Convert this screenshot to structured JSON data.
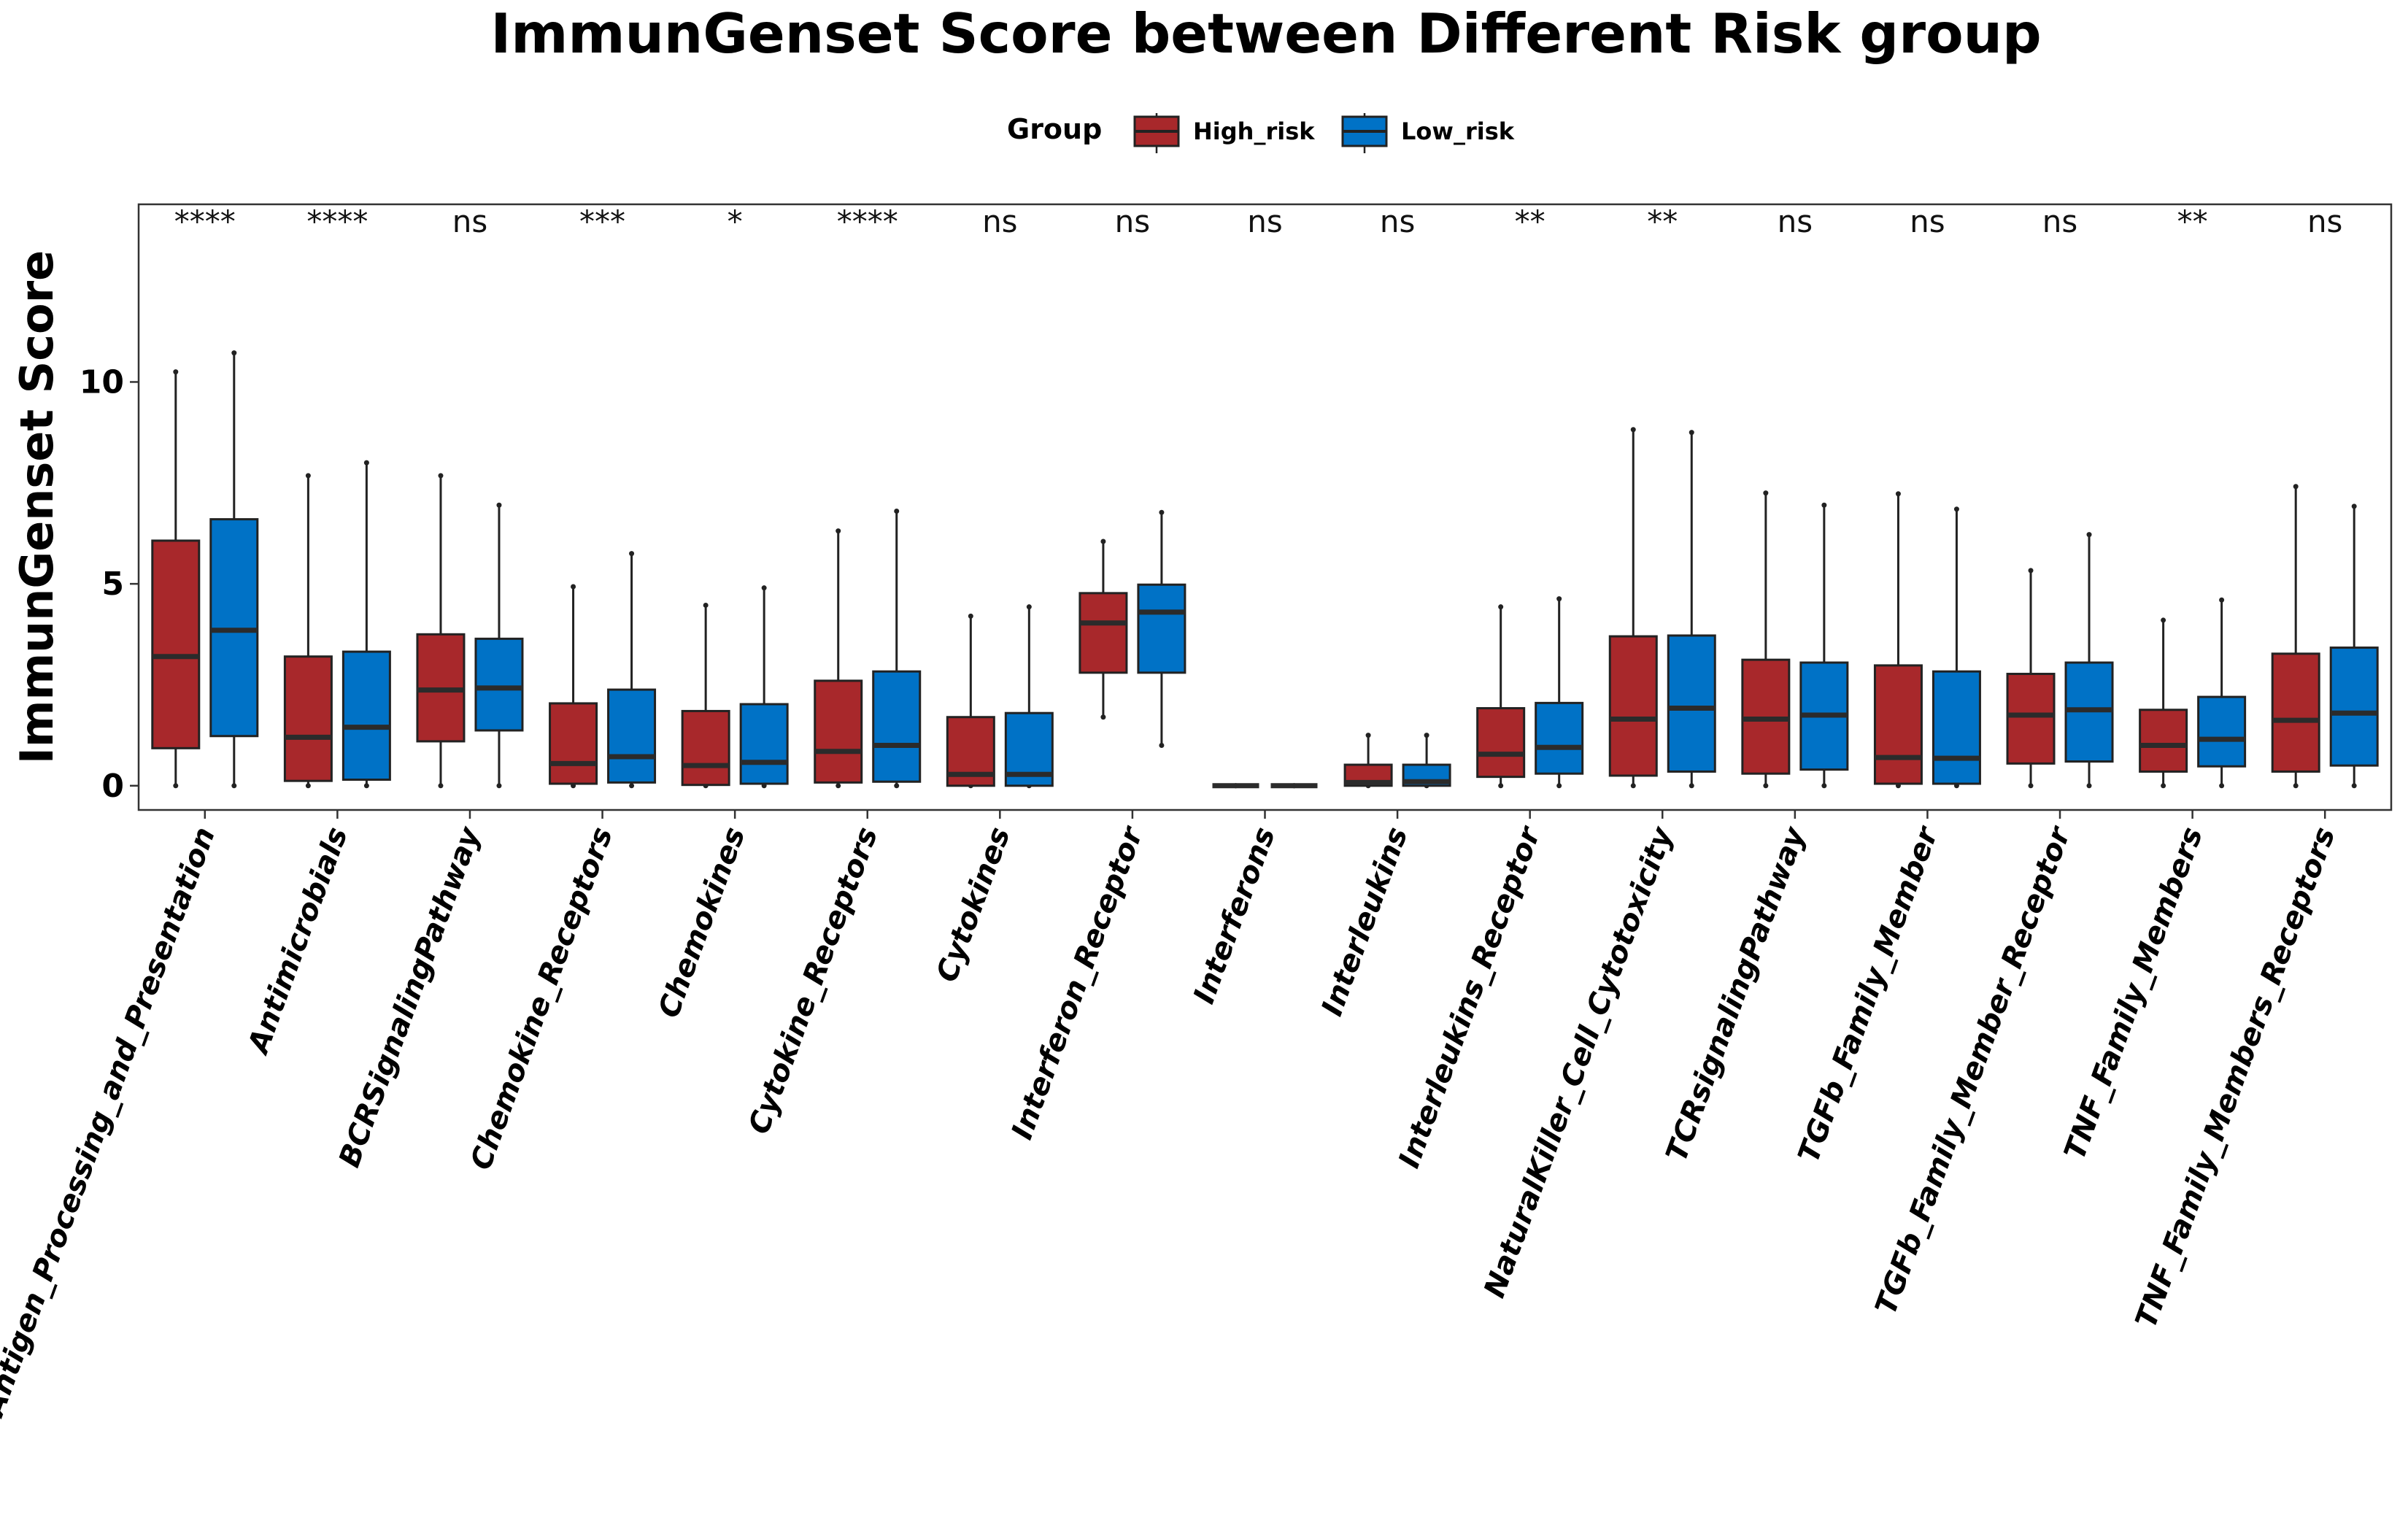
{
  "chart_data": {
    "type": "box",
    "title": "ImmunGenset Score between Different Risk group",
    "xlabel": "",
    "ylabel": "ImmunGenset Score",
    "ylim": [
      -0.6,
      14.4
    ],
    "yticks": [
      0,
      5,
      10
    ],
    "grid": false,
    "legend": {
      "title": "Group",
      "position": "top",
      "entries": [
        {
          "name": "High_risk",
          "color": "#A8282B"
        },
        {
          "name": "Low_risk",
          "color": "#0072C6"
        }
      ]
    },
    "categories": [
      "Antigen_Processing_and_Presentation",
      "Antimicrobials",
      "BCRSignalingPathway",
      "Chemokine_Receptors",
      "Chemokines",
      "Cytokine_Receptors",
      "Cytokines",
      "Interferon_Receptor",
      "Interferons",
      "Interleukins",
      "Interleukins_Receptor",
      "NaturalKiller_Cell_Cytotoxicity",
      "TCRsignalingPathway",
      "TGFb_Family_Member",
      "TGFb_Family_Member_Receptor",
      "TNF_Family_Members",
      "TNF_Family_Members_Receptors"
    ],
    "significance": [
      "****",
      "****",
      "ns",
      "***",
      "*",
      "****",
      "ns",
      "ns",
      "ns",
      "ns",
      "**",
      "**",
      "ns",
      "ns",
      "ns",
      "**",
      "ns"
    ],
    "series": [
      {
        "name": "High_risk",
        "color": "#A8282B",
        "boxes": [
          {
            "min": 0,
            "q1": 0.93,
            "median": 3.2,
            "q3": 6.07,
            "max": 10.25
          },
          {
            "min": 0,
            "q1": 0.12,
            "median": 1.2,
            "q3": 3.2,
            "max": 7.68
          },
          {
            "min": 0,
            "q1": 1.1,
            "median": 2.37,
            "q3": 3.75,
            "max": 7.68
          },
          {
            "min": 0,
            "q1": 0.05,
            "median": 0.55,
            "q3": 2.04,
            "max": 4.93
          },
          {
            "min": 0,
            "q1": 0.02,
            "median": 0.5,
            "q3": 1.85,
            "max": 4.47
          },
          {
            "min": 0,
            "q1": 0.08,
            "median": 0.85,
            "q3": 2.6,
            "max": 6.31
          },
          {
            "min": 0,
            "q1": 0.0,
            "median": 0.28,
            "q3": 1.7,
            "max": 4.2
          },
          {
            "min": 1.7,
            "q1": 2.8,
            "median": 4.03,
            "q3": 4.77,
            "max": 6.05
          },
          {
            "min": 0,
            "q1": 0,
            "median": 0,
            "q3": 0,
            "max": 0
          },
          {
            "min": 0,
            "q1": 0.0,
            "median": 0.08,
            "q3": 0.52,
            "max": 1.25
          },
          {
            "min": 0,
            "q1": 0.22,
            "median": 0.78,
            "q3": 1.92,
            "max": 4.43
          },
          {
            "min": 0,
            "q1": 0.25,
            "median": 1.65,
            "q3": 3.7,
            "max": 8.82
          },
          {
            "min": 0,
            "q1": 0.3,
            "median": 1.65,
            "q3": 3.12,
            "max": 7.25
          },
          {
            "min": 0,
            "q1": 0.05,
            "median": 0.7,
            "q3": 2.98,
            "max": 7.23
          },
          {
            "min": 0,
            "q1": 0.55,
            "median": 1.75,
            "q3": 2.77,
            "max": 5.33
          },
          {
            "min": 0,
            "q1": 0.35,
            "median": 1.0,
            "q3": 1.88,
            "max": 4.1
          },
          {
            "min": 0,
            "q1": 0.35,
            "median": 1.62,
            "q3": 3.27,
            "max": 7.41
          }
        ]
      },
      {
        "name": "Low_risk",
        "color": "#0072C6",
        "boxes": [
          {
            "min": 0,
            "q1": 1.23,
            "median": 3.85,
            "q3": 6.6,
            "max": 10.72
          },
          {
            "min": 0,
            "q1": 0.15,
            "median": 1.45,
            "q3": 3.32,
            "max": 8.0
          },
          {
            "min": 0,
            "q1": 1.37,
            "median": 2.42,
            "q3": 3.64,
            "max": 6.95
          },
          {
            "min": 0,
            "q1": 0.08,
            "median": 0.72,
            "q3": 2.38,
            "max": 5.75
          },
          {
            "min": 0,
            "q1": 0.05,
            "median": 0.58,
            "q3": 2.02,
            "max": 4.9
          },
          {
            "min": 0,
            "q1": 0.1,
            "median": 1.0,
            "q3": 2.83,
            "max": 6.8
          },
          {
            "min": 0,
            "q1": 0.0,
            "median": 0.28,
            "q3": 1.8,
            "max": 4.43
          },
          {
            "min": 1.0,
            "q1": 2.8,
            "median": 4.3,
            "q3": 4.98,
            "max": 6.77
          },
          {
            "min": 0,
            "q1": 0,
            "median": 0,
            "q3": 0,
            "max": 0
          },
          {
            "min": 0,
            "q1": 0.0,
            "median": 0.1,
            "q3": 0.52,
            "max": 1.25
          },
          {
            "min": 0,
            "q1": 0.3,
            "median": 0.95,
            "q3": 2.05,
            "max": 4.63
          },
          {
            "min": 0,
            "q1": 0.35,
            "median": 1.92,
            "q3": 3.72,
            "max": 8.75
          },
          {
            "min": 0,
            "q1": 0.4,
            "median": 1.75,
            "q3": 3.05,
            "max": 6.95
          },
          {
            "min": 0,
            "q1": 0.05,
            "median": 0.68,
            "q3": 2.83,
            "max": 6.85
          },
          {
            "min": 0,
            "q1": 0.6,
            "median": 1.88,
            "q3": 3.05,
            "max": 6.22
          },
          {
            "min": 0,
            "q1": 0.48,
            "median": 1.15,
            "q3": 2.2,
            "max": 4.6
          },
          {
            "min": 0,
            "q1": 0.5,
            "median": 1.8,
            "q3": 3.42,
            "max": 6.92
          }
        ]
      }
    ]
  }
}
